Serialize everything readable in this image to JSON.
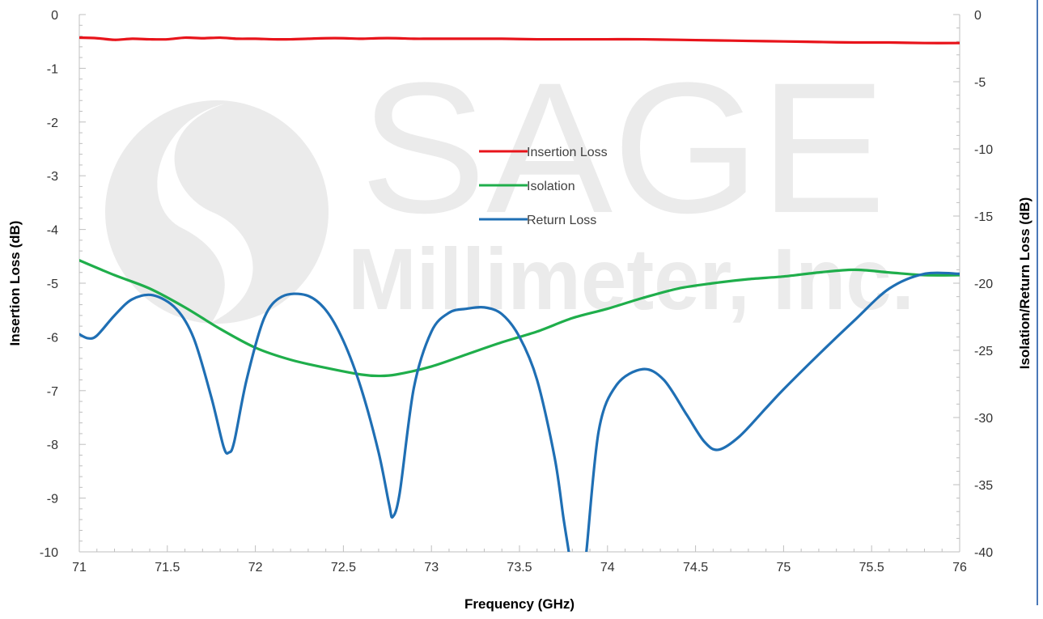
{
  "watermark": {
    "brand": "SAGE",
    "subtitle": "Millimeter, Inc."
  },
  "chart_data": {
    "type": "line",
    "title": "",
    "xlabel": "Frequency (GHz)",
    "ylabel_left": "Insertion Loss (dB)",
    "ylabel_right": "Isolation/Return Loss (dB)",
    "xlim": [
      71,
      76
    ],
    "ylim_left": [
      -10,
      0
    ],
    "ylim_right": [
      -40,
      0
    ],
    "grid": false,
    "legend_position": "center",
    "x_ticks": [
      "71",
      "71.5",
      "72",
      "72.5",
      "73",
      "73.5",
      "74",
      "74.5",
      "75",
      "75.5",
      "76"
    ],
    "y_left_ticks": [
      "0",
      "-1",
      "-2",
      "-3",
      "-4",
      "-5",
      "-6",
      "-7",
      "-8",
      "-9",
      "-10"
    ],
    "y_right_ticks": [
      "0",
      "-5",
      "-10",
      "-15",
      "-20",
      "-25",
      "-30",
      "-35",
      "-40"
    ],
    "series": [
      {
        "name": "Insertion Loss",
        "axis": "left",
        "color": "#e8141b",
        "x": [
          71.0,
          71.1,
          71.2,
          71.3,
          71.4,
          71.5,
          71.6,
          71.7,
          71.8,
          71.9,
          72.0,
          72.1,
          72.2,
          72.3,
          72.4,
          72.5,
          72.6,
          72.7,
          72.8,
          72.9,
          73.0,
          73.2,
          73.4,
          73.6,
          73.8,
          74.0,
          74.2,
          74.4,
          74.6,
          74.8,
          75.0,
          75.2,
          75.4,
          75.6,
          75.8,
          76.0
        ],
        "y": [
          -0.43,
          -0.44,
          -0.47,
          -0.45,
          -0.46,
          -0.46,
          -0.43,
          -0.44,
          -0.43,
          -0.45,
          -0.45,
          -0.46,
          -0.46,
          -0.45,
          -0.44,
          -0.44,
          -0.45,
          -0.44,
          -0.44,
          -0.45,
          -0.45,
          -0.45,
          -0.45,
          -0.46,
          -0.46,
          -0.46,
          -0.46,
          -0.47,
          -0.48,
          -0.49,
          -0.5,
          -0.51,
          -0.52,
          -0.52,
          -0.53,
          -0.53
        ]
      },
      {
        "name": "Isolation",
        "axis": "right",
        "color": "#1fae4b",
        "x": [
          71.0,
          71.2,
          71.4,
          71.6,
          71.8,
          72.0,
          72.2,
          72.4,
          72.6,
          72.7,
          72.8,
          73.0,
          73.2,
          73.4,
          73.6,
          73.8,
          74.0,
          74.2,
          74.4,
          74.6,
          74.8,
          75.0,
          75.2,
          75.4,
          75.6,
          75.8,
          76.0
        ],
        "y": [
          -18.3,
          -19.4,
          -20.4,
          -21.8,
          -23.4,
          -24.8,
          -25.7,
          -26.3,
          -26.8,
          -26.9,
          -26.8,
          -26.2,
          -25.3,
          -24.4,
          -23.6,
          -22.6,
          -21.9,
          -21.1,
          -20.4,
          -20.0,
          -19.7,
          -19.5,
          -19.2,
          -19.0,
          -19.2,
          -19.4,
          -19.4
        ]
      },
      {
        "name": "Return Loss",
        "axis": "right",
        "color": "#1f6fb4",
        "x": [
          71.0,
          71.05,
          71.1,
          71.2,
          71.3,
          71.42,
          71.55,
          71.65,
          71.75,
          71.82,
          71.85,
          71.88,
          71.95,
          72.05,
          72.15,
          72.29,
          72.4,
          72.5,
          72.6,
          72.7,
          72.76,
          72.78,
          72.82,
          72.9,
          73.0,
          73.1,
          73.2,
          73.3,
          73.4,
          73.5,
          73.6,
          73.7,
          73.75,
          73.78,
          73.8,
          73.86,
          73.88,
          73.95,
          74.05,
          74.2,
          74.32,
          74.45,
          74.55,
          74.63,
          74.75,
          74.9,
          75.0,
          75.2,
          75.4,
          75.6,
          75.8,
          76.0
        ],
        "y": [
          -23.8,
          -24.1,
          -23.9,
          -22.4,
          -21.2,
          -20.9,
          -21.9,
          -24.1,
          -28.5,
          -32.2,
          -32.6,
          -31.8,
          -27.2,
          -22.6,
          -21.0,
          -20.9,
          -22.0,
          -24.3,
          -27.8,
          -32.6,
          -36.5,
          -37.4,
          -35.6,
          -27.8,
          -23.6,
          -22.2,
          -21.9,
          -21.8,
          -22.3,
          -24.0,
          -27.2,
          -33.0,
          -37.5,
          -40.0,
          -42.0,
          -42.0,
          -40.0,
          -31.0,
          -27.6,
          -26.4,
          -27.2,
          -29.8,
          -31.8,
          -32.4,
          -31.4,
          -29.3,
          -27.9,
          -25.3,
          -22.8,
          -20.4,
          -19.3,
          -19.3
        ]
      }
    ]
  }
}
